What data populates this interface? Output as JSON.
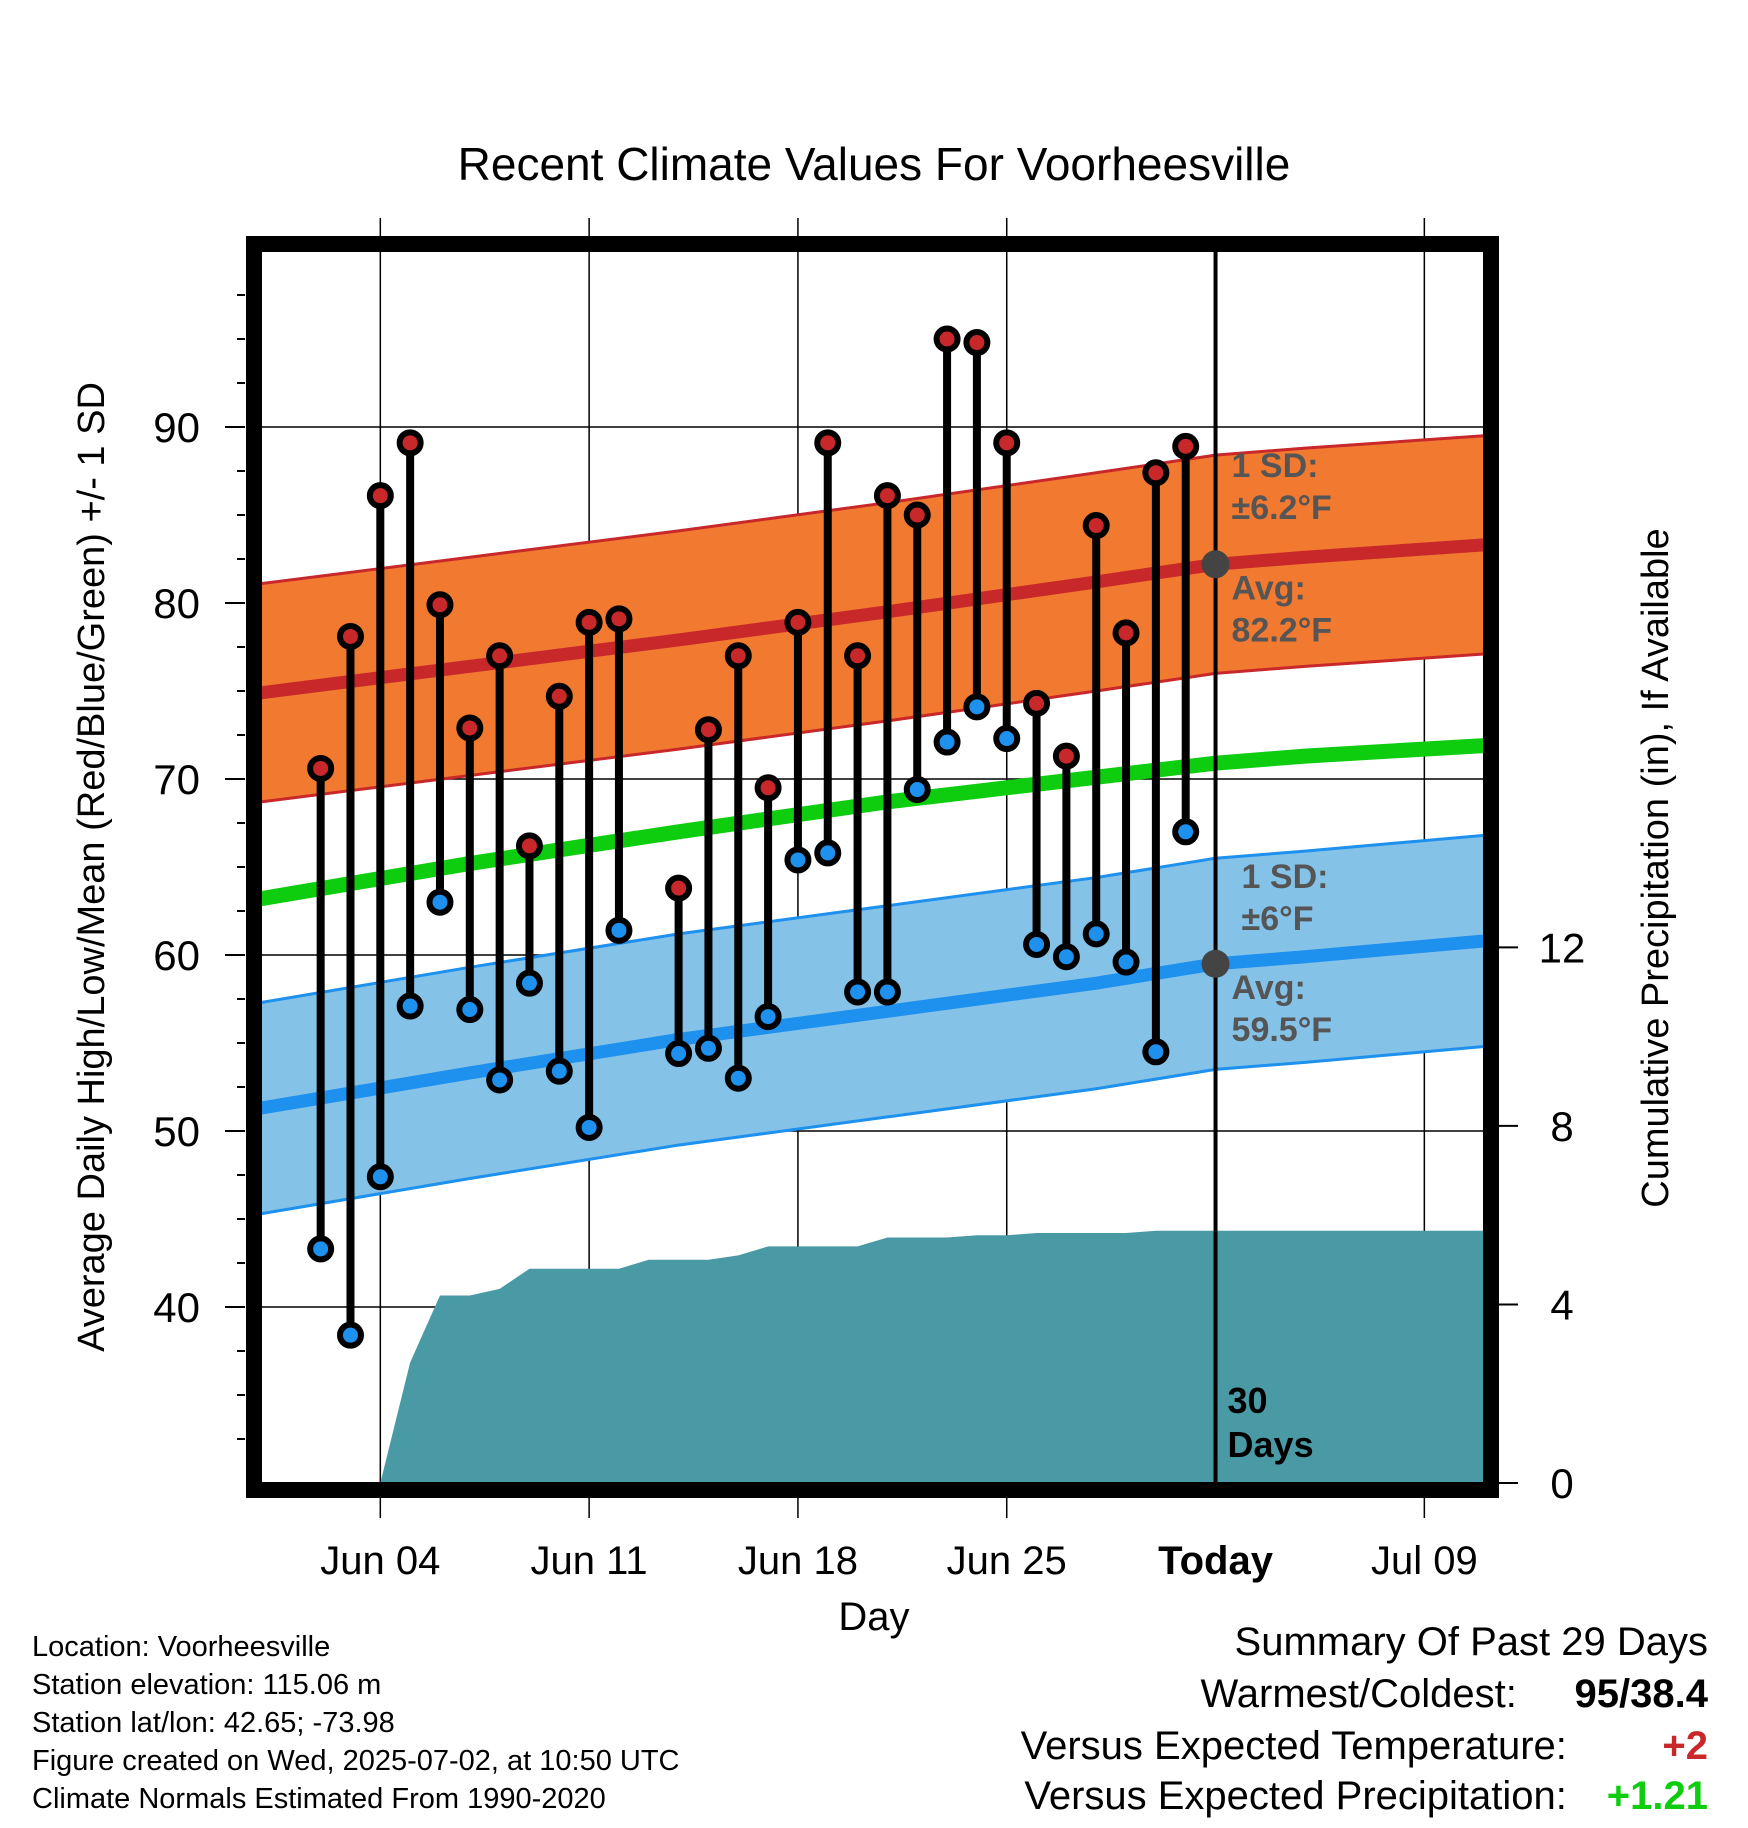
{
  "chart_data": {
    "type": "line",
    "title": "Recent Climate Values For Voorheesville",
    "xlabel": "Day",
    "ylabel": "Average Daily High/Low/Mean (Red/Blue/Green) +/- 1 SD",
    "y2label": "Cumulative Precipitation (in), If Available",
    "xlim": [
      "2025-05-31",
      "2025-07-11"
    ],
    "ylim": [
      30,
      100
    ],
    "y2lim": [
      0,
      27.6
    ],
    "x_ticks": [
      {
        "date": "2025-06-04",
        "label": "Jun 04"
      },
      {
        "date": "2025-06-11",
        "label": "Jun 11"
      },
      {
        "date": "2025-06-18",
        "label": "Jun 18"
      },
      {
        "date": "2025-06-25",
        "label": "Jun 25"
      },
      {
        "date": "2025-07-02",
        "label": "Today"
      },
      {
        "date": "2025-07-09",
        "label": "Jul 09"
      }
    ],
    "y_ticks": [
      40,
      50,
      60,
      70,
      80,
      90
    ],
    "y2_ticks": [
      0,
      4,
      8,
      12
    ],
    "grid": true,
    "today": "2025-07-02",
    "today_label_lines": [
      "30",
      "Days"
    ],
    "series": [
      {
        "name": "High",
        "color": "#c8282a",
        "dates": [
          "2025-06-02",
          "2025-06-03",
          "2025-06-04",
          "2025-06-05",
          "2025-06-06",
          "2025-06-07",
          "2025-06-08",
          "2025-06-09",
          "2025-06-10",
          "2025-06-11",
          "2025-06-12",
          "2025-06-14",
          "2025-06-15",
          "2025-06-16",
          "2025-06-17",
          "2025-06-18",
          "2025-06-19",
          "2025-06-20",
          "2025-06-21",
          "2025-06-22",
          "2025-06-23",
          "2025-06-24",
          "2025-06-25",
          "2025-06-26",
          "2025-06-27",
          "2025-06-28",
          "2025-06-29",
          "2025-06-30",
          "2025-07-01"
        ],
        "values": [
          70.6,
          78.1,
          86.1,
          89.1,
          79.9,
          72.9,
          77.0,
          66.2,
          74.7,
          78.9,
          79.1,
          63.8,
          72.8,
          77.0,
          69.5,
          78.9,
          89.1,
          77.0,
          86.1,
          85.0,
          95.0,
          94.8,
          89.1,
          74.3,
          71.3,
          84.4,
          78.3,
          87.4,
          88.9
        ]
      },
      {
        "name": "Low",
        "color": "#1e90ee",
        "dates": [
          "2025-06-02",
          "2025-06-03",
          "2025-06-04",
          "2025-06-05",
          "2025-06-06",
          "2025-06-07",
          "2025-06-08",
          "2025-06-09",
          "2025-06-10",
          "2025-06-11",
          "2025-06-12",
          "2025-06-14",
          "2025-06-15",
          "2025-06-16",
          "2025-06-17",
          "2025-06-18",
          "2025-06-19",
          "2025-06-20",
          "2025-06-21",
          "2025-06-22",
          "2025-06-23",
          "2025-06-24",
          "2025-06-25",
          "2025-06-26",
          "2025-06-27",
          "2025-06-28",
          "2025-06-29",
          "2025-06-30",
          "2025-07-01"
        ],
        "values": [
          43.3,
          38.4,
          47.4,
          57.1,
          63.0,
          56.9,
          52.9,
          58.4,
          53.4,
          50.2,
          61.4,
          54.4,
          54.7,
          53.0,
          56.5,
          65.4,
          65.8,
          57.9,
          57.9,
          69.4,
          72.1,
          74.1,
          72.3,
          60.6,
          59.9,
          61.2,
          59.6,
          54.5,
          67.0
        ]
      },
      {
        "name": "Normal high",
        "color": "#c8282a",
        "dates": [
          "2025-05-31",
          "2025-06-07",
          "2025-06-14",
          "2025-06-21",
          "2025-06-28",
          "2025-07-02",
          "2025-07-05",
          "2025-07-11"
        ],
        "values": [
          74.9,
          76.4,
          77.9,
          79.5,
          81.2,
          82.2,
          82.6,
          83.3
        ],
        "sd": 6.2
      },
      {
        "name": "Normal mean",
        "color": "#0ecc0e",
        "dates": [
          "2025-05-31",
          "2025-06-07",
          "2025-06-14",
          "2025-06-21",
          "2025-06-28",
          "2025-07-02",
          "2025-07-05",
          "2025-07-11"
        ],
        "values": [
          63.2,
          65.2,
          67.0,
          68.7,
          70.1,
          70.9,
          71.3,
          71.9
        ]
      },
      {
        "name": "Normal low",
        "color": "#1e90ee",
        "dates": [
          "2025-05-31",
          "2025-06-07",
          "2025-06-14",
          "2025-06-21",
          "2025-06-28",
          "2025-07-02",
          "2025-07-05",
          "2025-07-11"
        ],
        "values": [
          51.3,
          53.3,
          55.2,
          56.8,
          58.4,
          59.5,
          59.9,
          60.8
        ],
        "sd": 6.0
      },
      {
        "name": "Cumulative precipitation (in)",
        "color": "#4a9aa6",
        "axis": "right",
        "dates": [
          "2025-06-04",
          "2025-06-05",
          "2025-06-06",
          "2025-06-07",
          "2025-06-08",
          "2025-06-09",
          "2025-06-10",
          "2025-06-11",
          "2025-06-12",
          "2025-06-13",
          "2025-06-14",
          "2025-06-15",
          "2025-06-16",
          "2025-06-17",
          "2025-06-18",
          "2025-06-19",
          "2025-06-20",
          "2025-06-21",
          "2025-06-22",
          "2025-06-23",
          "2025-06-24",
          "2025-06-25",
          "2025-06-26",
          "2025-06-27",
          "2025-06-28",
          "2025-06-29",
          "2025-06-30",
          "2025-07-01",
          "2025-07-02",
          "2025-07-11"
        ],
        "values": [
          0.0,
          2.7,
          4.2,
          4.2,
          4.35,
          4.8,
          4.8,
          4.8,
          4.8,
          5.0,
          5.0,
          5.0,
          5.1,
          5.3,
          5.3,
          5.3,
          5.3,
          5.5,
          5.5,
          5.5,
          5.55,
          5.55,
          5.6,
          5.6,
          5.6,
          5.6,
          5.65,
          5.65,
          5.65,
          5.65
        ]
      }
    ],
    "annotations": [
      {
        "lines": [
          "1 SD:",
          "±6.2°F"
        ]
      },
      {
        "lines": [
          "Avg:",
          "82.2°F"
        ]
      },
      {
        "lines": [
          "1 SD:",
          "±6°F"
        ]
      },
      {
        "lines": [
          "Avg:",
          "59.5°F"
        ]
      }
    ]
  },
  "info": {
    "location": "Location: Voorheesville",
    "elevation": "Station elevation: 115.06 m",
    "latlon": "Station lat/lon: 42.65; -73.98",
    "created": "Figure created on Wed, 2025-07-02, at 10:50 UTC",
    "normals": "Climate Normals Estimated From 1990-2020"
  },
  "summary": {
    "heading": "Summary Of Past 29 Days",
    "warm_cold_label": "Warmest/Coldest:",
    "warm_cold_value": "95/38.4",
    "temp_label": "Versus Expected Temperature:",
    "temp_value": "+2",
    "temp_color": "#c8282a",
    "precip_label": "Versus Expected Precipitation:",
    "precip_value": "+1.21",
    "precip_color": "#0ecc0e"
  }
}
